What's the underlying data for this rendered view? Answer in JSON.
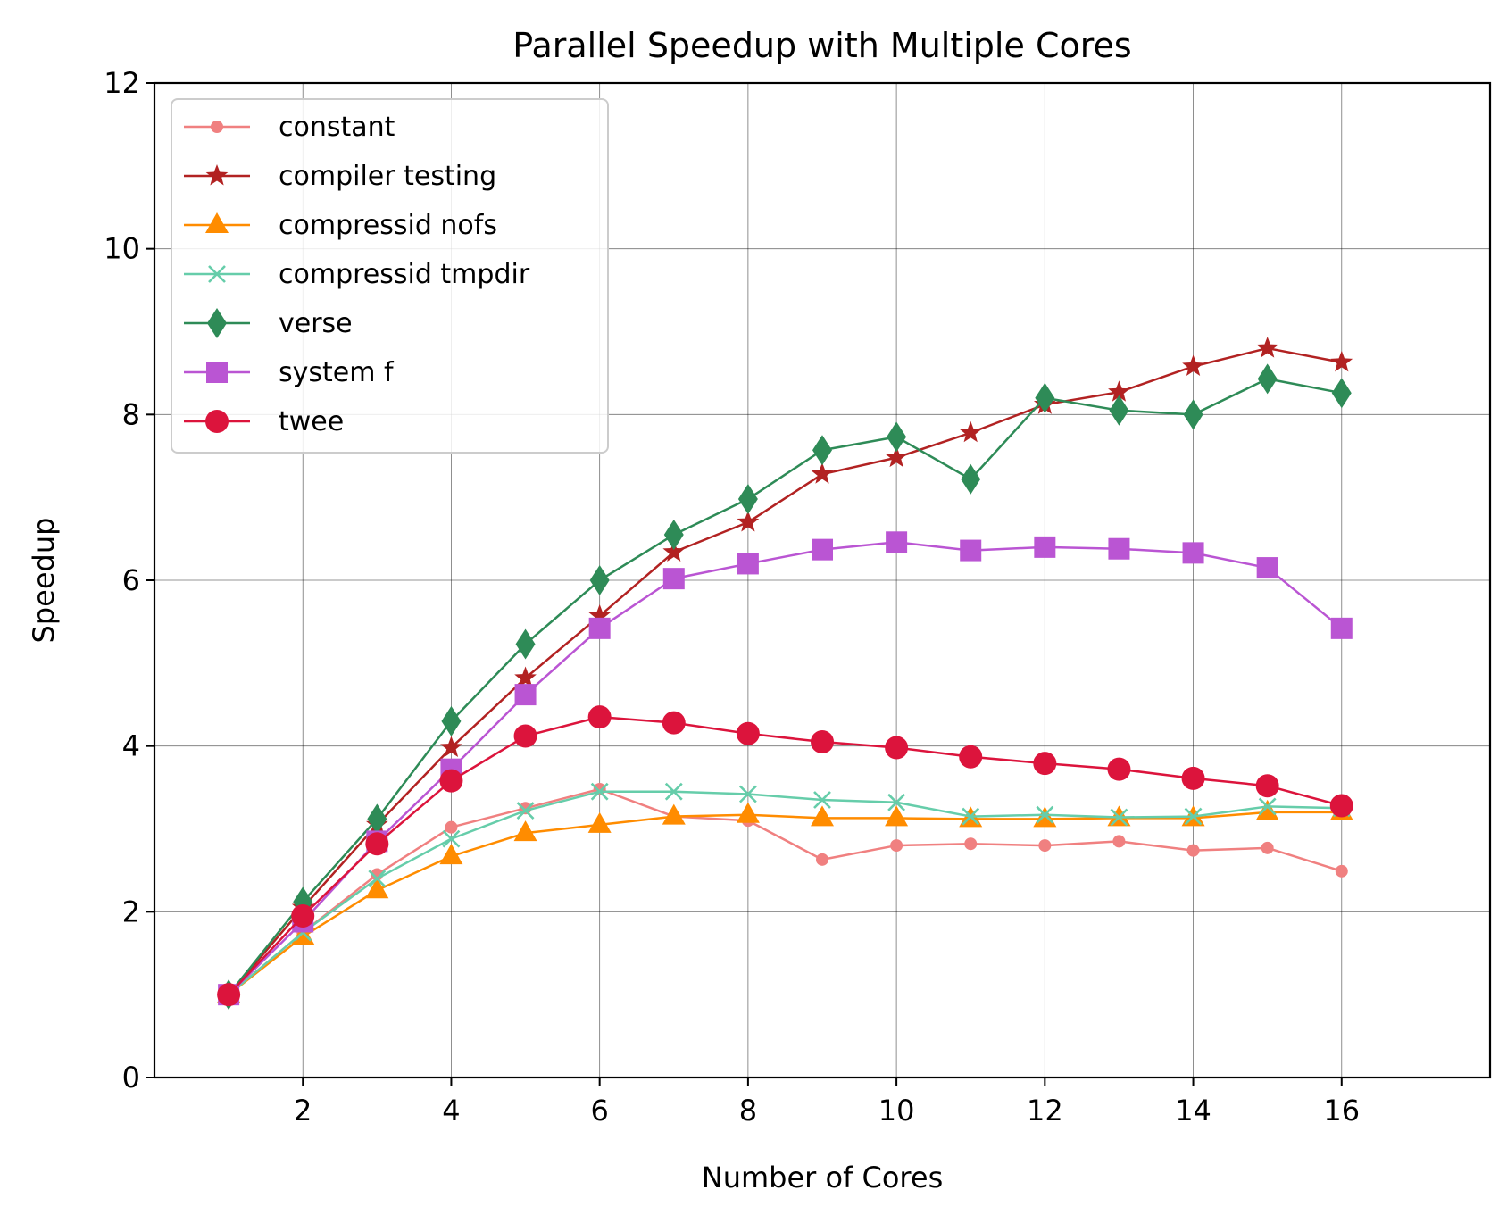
{
  "chart_data": {
    "type": "line",
    "title": "Parallel Speedup with Multiple Cores",
    "xlabel": "Number of Cores",
    "ylabel": "Speedup",
    "xlim": [
      0,
      18
    ],
    "ylim": [
      0,
      12
    ],
    "xticks": [
      2,
      4,
      6,
      8,
      10,
      12,
      14,
      16
    ],
    "yticks": [
      0,
      2,
      4,
      6,
      8,
      10,
      12
    ],
    "grid": true,
    "legend_position": "top-left",
    "x": [
      1,
      2,
      3,
      4,
      5,
      6,
      7,
      8,
      9,
      10,
      11,
      12,
      13,
      14,
      15,
      16
    ],
    "series": [
      {
        "name": "constant",
        "color": "#f08080",
        "marker": "point",
        "values": [
          1.0,
          1.75,
          2.45,
          3.02,
          3.25,
          3.48,
          3.15,
          3.1,
          2.63,
          2.8,
          2.82,
          2.8,
          2.85,
          2.74,
          2.77,
          2.49
        ]
      },
      {
        "name": "compiler testing",
        "color": "#b22222",
        "marker": "star",
        "values": [
          1.0,
          2.05,
          3.05,
          3.98,
          4.82,
          5.57,
          6.34,
          6.7,
          7.28,
          7.48,
          7.78,
          8.12,
          8.27,
          8.58,
          8.8,
          8.63
        ]
      },
      {
        "name": "compressid nofs",
        "color": "#ff8c00",
        "marker": "triangle",
        "values": [
          1.0,
          1.7,
          2.26,
          2.67,
          2.95,
          3.05,
          3.15,
          3.17,
          3.13,
          3.13,
          3.12,
          3.12,
          3.13,
          3.13,
          3.2,
          3.2
        ]
      },
      {
        "name": "compressid tmpdir",
        "color": "#66cdaa",
        "marker": "x",
        "values": [
          1.0,
          1.75,
          2.4,
          2.88,
          3.22,
          3.45,
          3.45,
          3.42,
          3.35,
          3.32,
          3.15,
          3.17,
          3.14,
          3.15,
          3.27,
          3.25
        ]
      },
      {
        "name": "verse",
        "color": "#2e8b57",
        "marker": "diamond",
        "values": [
          1.0,
          2.12,
          3.12,
          4.3,
          5.23,
          6.0,
          6.55,
          6.98,
          7.57,
          7.73,
          7.22,
          8.2,
          8.05,
          8.0,
          8.43,
          8.26
        ]
      },
      {
        "name": "system f",
        "color": "#ba55d3",
        "marker": "square",
        "values": [
          1.0,
          1.88,
          2.85,
          3.72,
          4.62,
          5.42,
          6.02,
          6.2,
          6.37,
          6.46,
          6.36,
          6.4,
          6.38,
          6.33,
          6.15,
          5.42
        ]
      },
      {
        "name": "twee",
        "color": "#dc143c",
        "marker": "circle",
        "values": [
          1.0,
          1.95,
          2.82,
          3.58,
          4.12,
          4.35,
          4.28,
          4.15,
          4.05,
          3.98,
          3.87,
          3.79,
          3.72,
          3.61,
          3.52,
          3.28
        ]
      }
    ]
  }
}
